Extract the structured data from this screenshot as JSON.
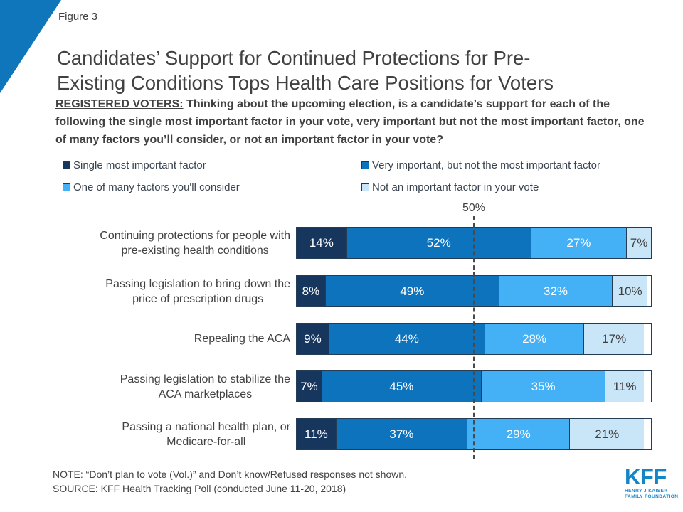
{
  "figure_label": "Figure 3",
  "title": {
    "line1": "Candidates’ Support for Continued Protections for Pre-",
    "line2": "Existing Conditions Tops Health Care Positions for Voters"
  },
  "subtitle": {
    "lead": "REGISTERED VOTERS:",
    "rest": " Thinking about the upcoming election, is a candidate’s support for each of the following the single most important factor in your vote, very important but not the most important factor, one of many factors you’ll consider, or not an important factor in your vote?"
  },
  "chart_data": {
    "type": "bar",
    "subtype": "horizontal_stacked",
    "unit": "percent",
    "value_suffix": "%",
    "axis_max": 100,
    "grid": false,
    "legend_position": "top",
    "reference_line": {
      "value": 50,
      "label": "50%"
    },
    "categories": [
      "Continuing protections for people with\npre-existing health conditions",
      "Passing legislation to bring down the\nprice of prescription drugs",
      "Repealing the ACA",
      "Passing legislation to stabilize the\nACA marketplaces",
      "Passing a national health plan, or\nMedicare-for-all"
    ],
    "series": [
      {
        "name": "Single most important factor",
        "color": "#17365D",
        "label_color": "#FFFFFF",
        "values": [
          14,
          8,
          9,
          7,
          11
        ]
      },
      {
        "name": "Very important, but not the most important factor",
        "color": "#0D73BD",
        "label_color": "#FFFFFF",
        "values": [
          52,
          49,
          44,
          45,
          37
        ]
      },
      {
        "name": "One of many factors you'll consider",
        "color": "#44B0F6",
        "label_color": "#FFFFFF",
        "values": [
          27,
          32,
          28,
          35,
          29
        ]
      },
      {
        "name": "Not an important factor in your vote",
        "color": "#C9E5F8",
        "label_color": "#404040",
        "values": [
          7,
          10,
          17,
          11,
          21
        ]
      }
    ]
  },
  "footer": {
    "note": "NOTE: “Don’t plan to vote (Vol.)” and Don’t know/Refused responses not shown.",
    "source": "SOURCE: KFF Health Tracking Poll (conducted June 11-20, 2018)"
  },
  "logo": {
    "text": "KFF",
    "tagline_line1": "HENRY J KAISER",
    "tagline_line2": "FAMILY FOUNDATION"
  },
  "colors": {
    "accent_triangle": "#0F76BC",
    "bar_border": "#253C55",
    "text": "#414141",
    "logo_blue": "#1486C8"
  }
}
